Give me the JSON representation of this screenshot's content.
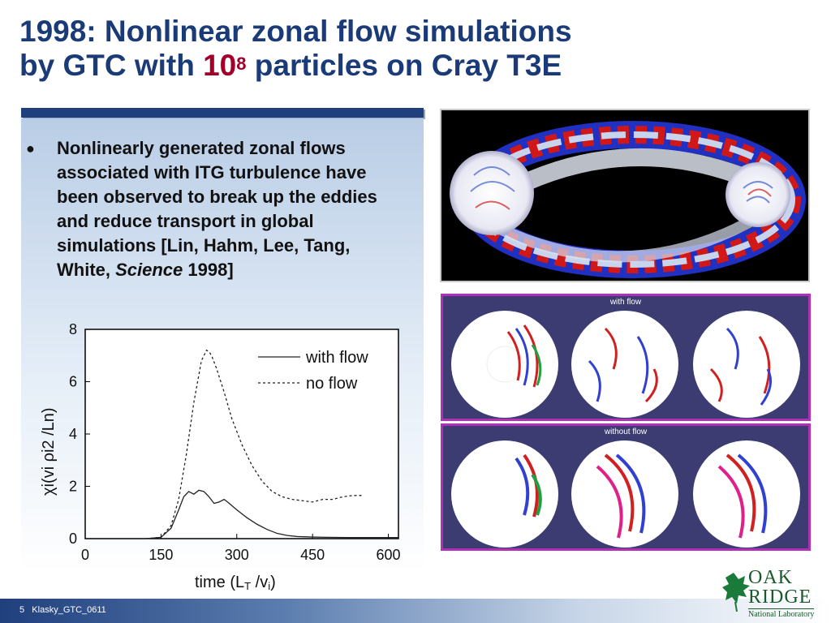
{
  "slide": {
    "title_line1": "1998: Nonlinear zonal flow simulations",
    "title_line2_pre": "by GTC with ",
    "title_base": "10",
    "title_exp": "8",
    "title_line2_post": " particles on Cray T3E",
    "bullet_main": "Nonlinearly generated zonal flows associated with ITG turbulence have been observed to break up the eddies and reduce transport in global simulations [Lin, Hahm, Lee, Tang, White, ",
    "bullet_italic": "Science",
    "bullet_end": " 1998]",
    "footer": {
      "page": "5",
      "label": "Klasky_GTC_0611"
    },
    "logo": {
      "line1": "OAK",
      "line2": "RIDGE",
      "line3": "National Laboratory"
    },
    "panel_captions": {
      "with_flow": "with flow",
      "without_flow": "without flow"
    },
    "colors": {
      "title": "#1a3a78",
      "accent": "#a0002a",
      "panel_border": "#b030b8"
    }
  },
  "chart_data": {
    "type": "line",
    "xlabel": "time (L",
    "xlabel_sub": "T",
    "xlabel_end": " /v",
    "xlabel_sub2": "i",
    "xlabel_close": ")",
    "ylabel": "χi(vi ρi2 /Ln)",
    "xlim": [
      0,
      620
    ],
    "ylim": [
      0,
      8
    ],
    "xticks": [
      0,
      150,
      300,
      450,
      600
    ],
    "yticks": [
      0,
      2,
      4,
      6,
      8
    ],
    "legend_position": "top-right",
    "series": [
      {
        "name": "with flow",
        "style": "solid",
        "x": [
          120,
          150,
          170,
          185,
          195,
          205,
          215,
          225,
          235,
          245,
          255,
          265,
          275,
          285,
          300,
          320,
          340,
          360,
          380,
          400,
          420,
          450,
          480,
          520,
          560,
          600,
          620
        ],
        "y": [
          0,
          0.05,
          0.4,
          1.1,
          1.6,
          1.8,
          1.7,
          1.85,
          1.8,
          1.6,
          1.35,
          1.4,
          1.5,
          1.35,
          1.1,
          0.8,
          0.55,
          0.35,
          0.2,
          0.12,
          0.08,
          0.06,
          0.05,
          0.04,
          0.04,
          0.04,
          0.04
        ]
      },
      {
        "name": "no flow",
        "style": "dashed",
        "x": [
          120,
          150,
          170,
          185,
          200,
          215,
          230,
          240,
          245,
          250,
          260,
          275,
          290,
          310,
          330,
          350,
          370,
          390,
          410,
          430,
          450,
          470,
          490,
          510,
          530,
          550
        ],
        "y": [
          0,
          0.05,
          0.5,
          1.5,
          3.2,
          5.2,
          6.8,
          7.2,
          7.15,
          7.0,
          6.5,
          5.6,
          4.6,
          3.6,
          2.8,
          2.2,
          1.8,
          1.6,
          1.5,
          1.45,
          1.4,
          1.5,
          1.5,
          1.6,
          1.65,
          1.65
        ]
      }
    ]
  }
}
